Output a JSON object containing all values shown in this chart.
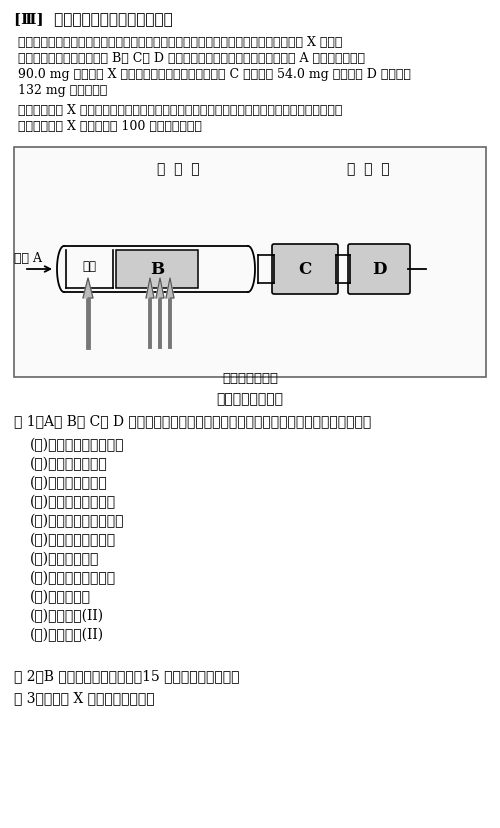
{
  "title_bracket": "[Ⅲ]",
  "title_text": "文章を読んで問いに答えよ。",
  "para1": "図に示すような元素分析装置を用いて，試料として炭素，水素，酸素からなる化合物 X の元素",
  "para2": "分析を行った。適当な物質 B， C， D を元素分析装置に設置し，装置に気体 A を流しながら，",
  "para3": "90.0 mg の化合物 X を燃焼管で燃焼させたところ， C の質量が 54.0 mg 増加し， D の質量が",
  "para4": "132 mg 増加した。",
  "para5": "なお，化合物 X は不齐炭素原子をもち，炭酸水素ナトリウム水溶液に溶解する性質を示した。",
  "para6": "また，化合物 X の分子量は 100 以下であった。",
  "diagram_label": "図　元素分析装置",
  "combustion_tube_label": "燃  焼  管",
  "absorption_tube_label": "吸  収  管",
  "gas_a_label": "気体 A",
  "sample_label": "試料",
  "B_label": "B",
  "C_label": "C",
  "D_label": "D",
  "burner_label": "バーナーで加熱",
  "q1_text": "問 1　A， B， C， D に最も適した物質を（あ）～（さ）の中から選び記号で答えよ。",
  "options": [
    "(あ)　举燥したへリウム",
    "(い)　举燥した窒素",
    "(う)　举燥した酸素",
    "(え)　塩化カルシウム",
    "(お)　水酸化ナトリウム",
    "(か)　炭酸ナトリウム",
    "(き)　ソーダ石灰",
    "(く)　酸化カルシウム",
    "(け)　酸化亜邉",
    "(こ)　酸化鉄(II)",
    "(さ)　酸化銅(II)"
  ],
  "q2_text": "問 2　B を用いる目的は何か、15 文字以内で答えよ。",
  "q3_text": "問 3　化合物 X の組成式を書け。",
  "bg_color": "#ffffff",
  "text_color": "#000000",
  "box_fill": "#cccccc"
}
